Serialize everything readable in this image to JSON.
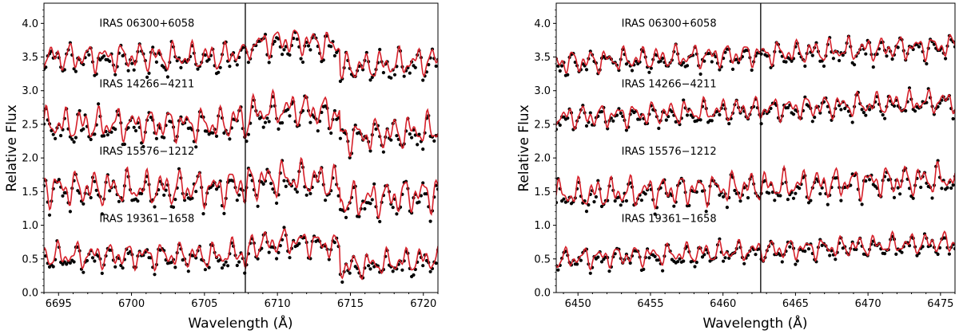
{
  "colors": {
    "model_line": "#d6202a",
    "model_line_alt": "#4a3fd0",
    "observed": "#000000",
    "marker_line": "#000000"
  },
  "chart_data": [
    {
      "type": "line",
      "panel": "left",
      "xlabel": "Wavelength (Å)",
      "ylabel": "Relative Flux",
      "xlim": [
        6694,
        6721
      ],
      "ylim": [
        0.0,
        4.3
      ],
      "xticks": [
        6695,
        6700,
        6705,
        6710,
        6715,
        6720
      ],
      "yticks": [
        0.0,
        0.5,
        1.0,
        1.5,
        2.0,
        2.5,
        3.0,
        3.5,
        4.0
      ],
      "vline": 6707.8,
      "series": [
        {
          "name": "IRAS 06300+6058",
          "baseline": 3.5,
          "label_x": 6697.8,
          "label_y": 3.95,
          "amp": 0.12,
          "jump": 3.66,
          "drop": 3.33,
          "seed": 3
        },
        {
          "name": "IRAS 14266−4211",
          "baseline": 2.5,
          "label_x": 6697.8,
          "label_y": 3.05,
          "amp": 0.14,
          "jump": 2.65,
          "drop": 2.3,
          "seed": 7
        },
        {
          "name": "IRAS 15576−1212",
          "baseline": 1.55,
          "label_x": 6697.8,
          "label_y": 2.05,
          "amp": 0.15,
          "jump": 1.62,
          "drop": 1.35,
          "seed": 11
        },
        {
          "name": "IRAS 19361−1658",
          "baseline": 0.55,
          "label_x": 6697.8,
          "label_y": 1.05,
          "amp": 0.11,
          "jump": 0.68,
          "drop": 0.38,
          "seed": 17
        }
      ]
    },
    {
      "type": "line",
      "panel": "right",
      "xlabel": "Wavelength (Å)",
      "ylabel": "Relative Flux",
      "xlim": [
        6448.5,
        6476
      ],
      "ylim": [
        0.0,
        4.3
      ],
      "xticks": [
        6450,
        6455,
        6460,
        6465,
        6470,
        6475
      ],
      "yticks": [
        0.0,
        0.5,
        1.0,
        1.5,
        2.0,
        2.5,
        3.0,
        3.5,
        4.0
      ],
      "vline": 6462.6,
      "series": [
        {
          "name": "IRAS 06300+6058",
          "baseline": 3.42,
          "label_x": 6453.0,
          "label_y": 3.95,
          "amp": 0.1,
          "rise": 0.25,
          "seed": 5
        },
        {
          "name": "IRAS 14266−4211",
          "baseline": 2.6,
          "label_x": 6453.0,
          "label_y": 3.05,
          "amp": 0.1,
          "rise": 0.25,
          "seed": 9
        },
        {
          "name": "IRAS 15576−1212",
          "baseline": 1.45,
          "label_x": 6453.0,
          "label_y": 2.05,
          "amp": 0.13,
          "rise": 0.25,
          "seed": 13
        },
        {
          "name": "IRAS 19361−1658",
          "baseline": 0.5,
          "label_x": 6453.0,
          "label_y": 1.05,
          "amp": 0.09,
          "rise": 0.25,
          "seed": 21
        }
      ]
    }
  ]
}
